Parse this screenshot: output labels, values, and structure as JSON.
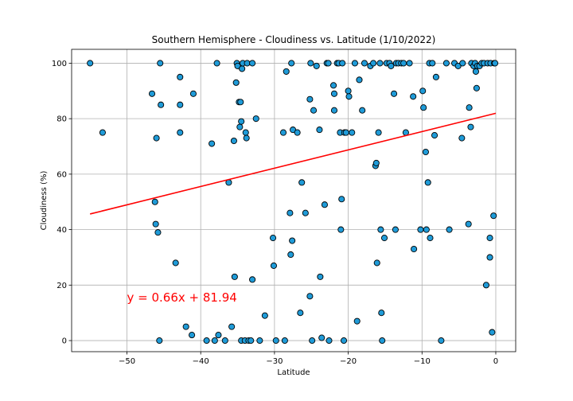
{
  "chart_data": {
    "type": "scatter",
    "title": "Southern Hemisphere - Cloudiness vs. Latitude (1/10/2022)",
    "xlabel": "Latitude",
    "ylabel": "Cloudiness (%)",
    "xlim": [
      -57.5,
      2.7
    ],
    "ylim": [
      -4,
      105
    ],
    "xticks": [
      -50,
      -40,
      -30,
      -20,
      -10,
      0
    ],
    "yticks": [
      0,
      20,
      40,
      60,
      80,
      100
    ],
    "grid": true,
    "marker_color": "#1f9bd8",
    "marker_edge": "#000000",
    "regression": {
      "equation": "y = 0.66x + 81.94",
      "slope": 0.66,
      "intercept": 81.94,
      "x_range": [
        -55,
        0
      ],
      "color": "#ff0000",
      "label_at": [
        -50,
        15.5
      ]
    },
    "points": [
      [
        -55,
        100
      ],
      [
        -53.3,
        75
      ],
      [
        -46.6,
        89
      ],
      [
        -46.2,
        50
      ],
      [
        -46.1,
        42
      ],
      [
        -46,
        73
      ],
      [
        -45.8,
        39
      ],
      [
        -45.6,
        0
      ],
      [
        -45.5,
        100
      ],
      [
        -45.4,
        85
      ],
      [
        -43.4,
        28
      ],
      [
        -42.8,
        95
      ],
      [
        -42.8,
        85
      ],
      [
        -42.8,
        75
      ],
      [
        -42,
        5
      ],
      [
        -41.2,
        2
      ],
      [
        -41,
        89
      ],
      [
        -39.2,
        0
      ],
      [
        -38.5,
        71
      ],
      [
        -38.1,
        0
      ],
      [
        -37.8,
        100
      ],
      [
        -37.6,
        2
      ],
      [
        -36.7,
        0
      ],
      [
        -36.2,
        57
      ],
      [
        -35.8,
        5
      ],
      [
        -35.5,
        72
      ],
      [
        -35.4,
        23
      ],
      [
        -35.2,
        93
      ],
      [
        -35.1,
        100
      ],
      [
        -35,
        99
      ],
      [
        -34.8,
        86
      ],
      [
        -34.7,
        77
      ],
      [
        -34.6,
        86
      ],
      [
        -34.5,
        79
      ],
      [
        -34.5,
        0
      ],
      [
        -34.4,
        98
      ],
      [
        -34.3,
        100
      ],
      [
        -34,
        0
      ],
      [
        -33.9,
        75
      ],
      [
        -33.8,
        73
      ],
      [
        -33.7,
        100
      ],
      [
        -33.5,
        0
      ],
      [
        -33.2,
        0
      ],
      [
        -33,
        22
      ],
      [
        -33,
        100
      ],
      [
        -32.5,
        80
      ],
      [
        -32,
        0
      ],
      [
        -31.3,
        9
      ],
      [
        -30.2,
        37
      ],
      [
        -30.1,
        27
      ],
      [
        -29.8,
        0
      ],
      [
        -28.8,
        75
      ],
      [
        -28.6,
        0
      ],
      [
        -28.4,
        97
      ],
      [
        -27.9,
        46
      ],
      [
        -27.8,
        31
      ],
      [
        -27.7,
        100
      ],
      [
        -27.6,
        36
      ],
      [
        -27.5,
        76
      ],
      [
        -26.9,
        75
      ],
      [
        -26.5,
        10
      ],
      [
        -26.3,
        57
      ],
      [
        -25.8,
        46
      ],
      [
        -25.2,
        87
      ],
      [
        -25.2,
        16
      ],
      [
        -25.1,
        100
      ],
      [
        -24.9,
        0
      ],
      [
        -24.7,
        83
      ],
      [
        -24.3,
        99
      ],
      [
        -23.9,
        76
      ],
      [
        -23.8,
        23
      ],
      [
        -23.6,
        1
      ],
      [
        -23.2,
        49
      ],
      [
        -22.9,
        100
      ],
      [
        -22.7,
        100
      ],
      [
        -22.6,
        0
      ],
      [
        -22,
        92
      ],
      [
        -21.9,
        89
      ],
      [
        -21.9,
        83
      ],
      [
        -21.5,
        100
      ],
      [
        -21.3,
        100
      ],
      [
        -21.1,
        75
      ],
      [
        -21,
        40
      ],
      [
        -20.9,
        51
      ],
      [
        -20.8,
        100
      ],
      [
        -20.6,
        0
      ],
      [
        -20.5,
        75
      ],
      [
        -20.3,
        75
      ],
      [
        -20,
        90
      ],
      [
        -19.9,
        88
      ],
      [
        -19.5,
        75
      ],
      [
        -19.1,
        100
      ],
      [
        -18.8,
        7
      ],
      [
        -18.5,
        94
      ],
      [
        -18.1,
        83
      ],
      [
        -17.8,
        100
      ],
      [
        -17,
        99
      ],
      [
        -16.6,
        100
      ],
      [
        -16.3,
        63
      ],
      [
        -16.2,
        64
      ],
      [
        -16.1,
        28
      ],
      [
        -15.9,
        75
      ],
      [
        -15.7,
        100
      ],
      [
        -15.6,
        40
      ],
      [
        -15.5,
        10
      ],
      [
        -15.4,
        0
      ],
      [
        -15.1,
        37
      ],
      [
        -14.8,
        100
      ],
      [
        -14.4,
        100
      ],
      [
        -14.2,
        99
      ],
      [
        -13.8,
        89
      ],
      [
        -13.6,
        40
      ],
      [
        -13.5,
        100
      ],
      [
        -13.2,
        100
      ],
      [
        -12.8,
        100
      ],
      [
        -12.5,
        100
      ],
      [
        -12.2,
        75
      ],
      [
        -11.7,
        100
      ],
      [
        -11.2,
        88
      ],
      [
        -11.1,
        33
      ],
      [
        -10.2,
        40
      ],
      [
        -9.9,
        90
      ],
      [
        -9.8,
        84
      ],
      [
        -9.5,
        68
      ],
      [
        -9.4,
        40
      ],
      [
        -9.2,
        57
      ],
      [
        -9,
        100
      ],
      [
        -8.9,
        37
      ],
      [
        -8.6,
        100
      ],
      [
        -8.3,
        74
      ],
      [
        -8.1,
        95
      ],
      [
        -7.4,
        0
      ],
      [
        -6.7,
        100
      ],
      [
        -6.3,
        40
      ],
      [
        -5.6,
        100
      ],
      [
        -5.1,
        99
      ],
      [
        -4.6,
        73
      ],
      [
        -4.5,
        100
      ],
      [
        -3.7,
        42
      ],
      [
        -3.6,
        84
      ],
      [
        -3.4,
        77
      ],
      [
        -3.3,
        100
      ],
      [
        -3,
        99
      ],
      [
        -2.8,
        100
      ],
      [
        -2.7,
        97
      ],
      [
        -2.6,
        91
      ],
      [
        -2.5,
        99
      ],
      [
        -2.2,
        99
      ],
      [
        -1.9,
        100
      ],
      [
        -1.6,
        100
      ],
      [
        -1.3,
        20
      ],
      [
        -1.1,
        100
      ],
      [
        -0.8,
        37
      ],
      [
        -0.8,
        30
      ],
      [
        -0.7,
        100
      ],
      [
        -0.5,
        3
      ],
      [
        -0.3,
        45
      ],
      [
        -0.2,
        100
      ],
      [
        -0.1,
        100
      ]
    ]
  }
}
